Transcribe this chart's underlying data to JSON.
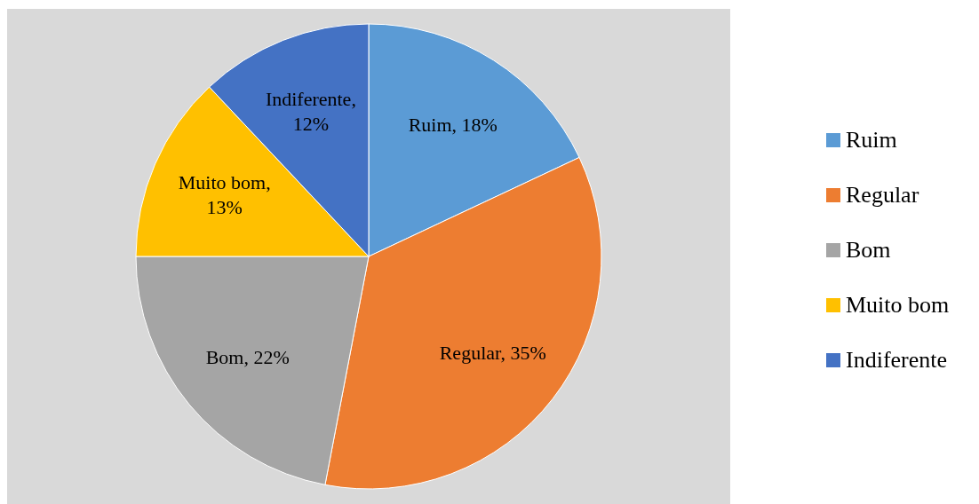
{
  "chart_data": {
    "type": "pie",
    "categories": [
      "Ruim",
      "Regular",
      "Bom",
      "Muito bom",
      "Indiferente"
    ],
    "values": [
      18,
      35,
      22,
      13,
      12
    ],
    "colors": [
      "#5b9bd5",
      "#ed7d31",
      "#a5a5a5",
      "#ffc000",
      "#4472c4"
    ],
    "value_labels": [
      "Ruim, 18%",
      "Regular, 35%",
      "Bom, 22%",
      "Muito bom, 13%",
      "Indiferente, 12%"
    ],
    "legend": "right"
  }
}
